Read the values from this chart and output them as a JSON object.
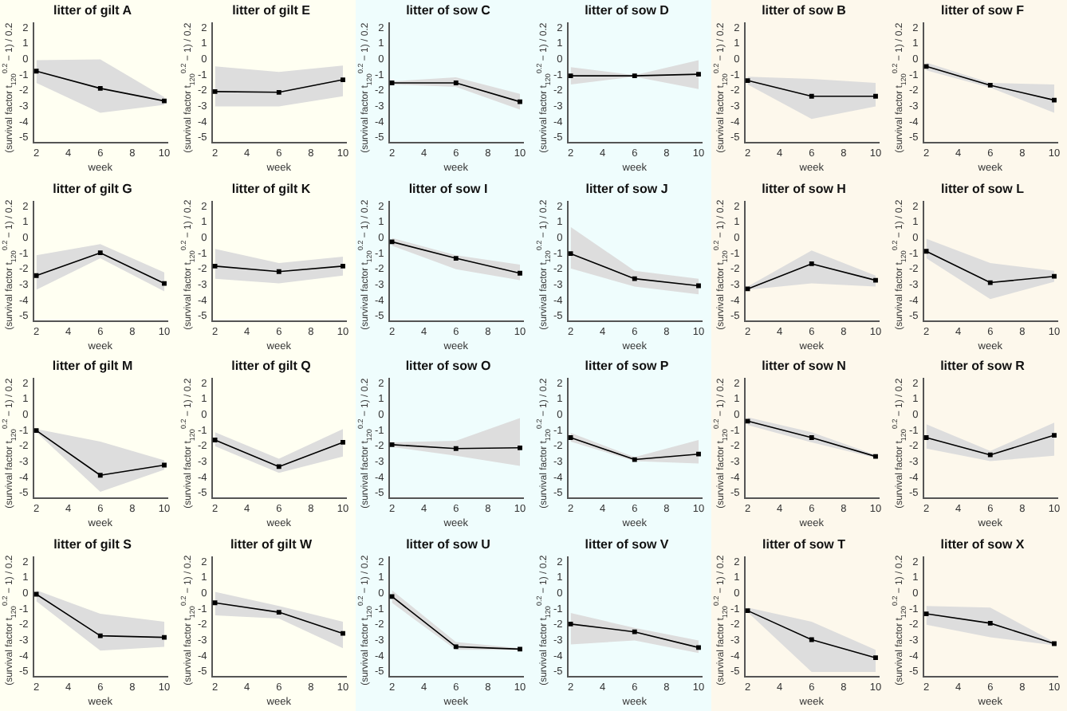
{
  "chart_data": [
    {
      "type": "line",
      "title": "litter of gilt A",
      "xlabel": "week",
      "ylabel": "(survival factor t$_{120}$$^{0.2}$ − 1) / 0.2",
      "x": [
        2,
        6,
        10
      ],
      "xlim": [
        1.8,
        10.2
      ],
      "xticks": [
        2,
        4,
        6,
        8,
        10
      ],
      "ylim": [
        -5.3,
        2.3
      ],
      "yticks": [
        -5,
        -4,
        -3,
        -2,
        -1,
        0,
        1,
        2
      ],
      "marker": "square",
      "series": [
        {
          "color": "#000000",
          "values": [
            -0.75,
            -1.85,
            -2.65
          ],
          "lower": [
            -1.5,
            -3.4,
            -2.9
          ],
          "upper": [
            -0.05,
            0,
            -2.4
          ]
        }
      ]
    },
    {
      "type": "line",
      "title": "litter of gilt E",
      "xlabel": "week",
      "ylabel": "(survival factor t$_{120}$$^{0.2}$ − 1) / 0.2",
      "x": [
        2,
        6,
        10
      ],
      "xlim": [
        1.8,
        10.2
      ],
      "xticks": [
        2,
        4,
        6,
        8,
        10
      ],
      "ylim": [
        -5.3,
        2.3
      ],
      "yticks": [
        -5,
        -4,
        -3,
        -2,
        -1,
        0,
        1,
        2
      ],
      "marker": "square",
      "series": [
        {
          "color": "#000000",
          "values": [
            -2.05,
            -2.1,
            -1.3
          ],
          "lower": [
            -3,
            -3,
            -2.35
          ],
          "upper": [
            -0.45,
            -0.8,
            -0.4
          ]
        }
      ]
    },
    {
      "type": "line",
      "title": "litter of sow C",
      "xlabel": "week",
      "ylabel": "(survival factor t$_{120}$$^{0.2}$ − 1) / 0.2",
      "x": [
        2,
        6,
        10
      ],
      "xlim": [
        1.8,
        10.2
      ],
      "xticks": [
        2,
        4,
        6,
        8,
        10
      ],
      "ylim": [
        -5.3,
        2.3
      ],
      "yticks": [
        -5,
        -4,
        -3,
        -2,
        -1,
        0,
        1,
        2
      ],
      "marker": "square",
      "series": [
        {
          "color": "#000000",
          "values": [
            -1.5,
            -1.5,
            -2.7
          ],
          "lower": [
            -1.6,
            -1.75,
            -3.2
          ],
          "upper": [
            -1.4,
            -1.15,
            -2.2
          ]
        }
      ]
    },
    {
      "type": "line",
      "title": "litter of sow D",
      "xlabel": "week",
      "ylabel": "(survival factor t$_{120}$$^{0.2}$ − 1) / 0.2",
      "x": [
        2,
        6,
        10
      ],
      "xlim": [
        1.8,
        10.2
      ],
      "xticks": [
        2,
        4,
        6,
        8,
        10
      ],
      "ylim": [
        -5.3,
        2.3
      ],
      "yticks": [
        -5,
        -4,
        -3,
        -2,
        -1,
        0,
        1,
        2
      ],
      "marker": "square",
      "series": [
        {
          "color": "#000000",
          "values": [
            -1.05,
            -1.05,
            -0.95
          ],
          "lower": [
            -1.6,
            -1.1,
            -1.9
          ],
          "upper": [
            -0.5,
            -1.0,
            -0.05
          ]
        }
      ]
    },
    {
      "type": "line",
      "title": "litter of sow B",
      "xlabel": "week",
      "ylabel": "(survival factor t$_{120}$$^{0.2}$ − 1) / 0.2",
      "x": [
        2,
        6,
        10
      ],
      "xlim": [
        1.8,
        10.2
      ],
      "xticks": [
        2,
        4,
        6,
        8,
        10
      ],
      "ylim": [
        -5.3,
        2.3
      ],
      "yticks": [
        -5,
        -4,
        -3,
        -2,
        -1,
        0,
        1,
        2
      ],
      "marker": "square",
      "series": [
        {
          "color": "#000000",
          "values": [
            -1.35,
            -2.35,
            -2.35
          ],
          "lower": [
            -1.6,
            -3.8,
            -3.0
          ],
          "upper": [
            -1.1,
            -1.25,
            -1.5
          ]
        }
      ]
    },
    {
      "type": "line",
      "title": "litter of sow F",
      "xlabel": "week",
      "ylabel": "(survival factor t$_{120}$$^{0.2}$ − 1) / 0.2",
      "x": [
        2,
        6,
        10
      ],
      "xlim": [
        1.8,
        10.2
      ],
      "xticks": [
        2,
        4,
        6,
        8,
        10
      ],
      "ylim": [
        -5.3,
        2.3
      ],
      "yticks": [
        -5,
        -4,
        -3,
        -2,
        -1,
        0,
        1,
        2
      ],
      "marker": "square",
      "series": [
        {
          "color": "#000000",
          "values": [
            -0.45,
            -1.65,
            -2.6
          ],
          "lower": [
            -0.7,
            -1.8,
            -3.4
          ],
          "upper": [
            -0.2,
            -1.5,
            -1.6
          ]
        }
      ]
    },
    {
      "type": "line",
      "title": "litter of gilt G",
      "xlabel": "week",
      "ylabel": "(survival factor t$_{120}$$^{0.2}$ − 1) / 0.2",
      "x": [
        2,
        6,
        10
      ],
      "xlim": [
        1.8,
        10.2
      ],
      "xticks": [
        2,
        4,
        6,
        8,
        10
      ],
      "ylim": [
        -5.3,
        2.3
      ],
      "yticks": [
        -5,
        -4,
        -3,
        -2,
        -1,
        0,
        1,
        2
      ],
      "marker": "square",
      "series": [
        {
          "color": "#000000",
          "values": [
            -2.4,
            -0.95,
            -2.9
          ],
          "lower": [
            -3.3,
            -1.3,
            -3.4
          ],
          "upper": [
            -1.1,
            -0.4,
            -2.2
          ]
        }
      ]
    },
    {
      "type": "line",
      "title": "litter of gilt K",
      "xlabel": "week",
      "ylabel": "(survival factor t$_{120}$$^{0.2}$ − 1) / 0.2",
      "x": [
        2,
        6,
        10
      ],
      "xlim": [
        1.8,
        10.2
      ],
      "xticks": [
        2,
        4,
        6,
        8,
        10
      ],
      "ylim": [
        -5.3,
        2.3
      ],
      "yticks": [
        -5,
        -4,
        -3,
        -2,
        -1,
        0,
        1,
        2
      ],
      "marker": "square",
      "series": [
        {
          "color": "#000000",
          "values": [
            -1.8,
            -2.15,
            -1.8
          ],
          "lower": [
            -2.6,
            -2.9,
            -2.4
          ],
          "upper": [
            -0.7,
            -1.6,
            -1.2
          ]
        }
      ]
    },
    {
      "type": "line",
      "title": "litter of sow I",
      "xlabel": "week",
      "ylabel": "(survival factor t$_{120}$$^{0.2}$ − 1) / 0.2",
      "x": [
        2,
        6,
        10
      ],
      "xlim": [
        1.8,
        10.2
      ],
      "xticks": [
        2,
        4,
        6,
        8,
        10
      ],
      "ylim": [
        -5.3,
        2.3
      ],
      "yticks": [
        -5,
        -4,
        -3,
        -2,
        -1,
        0,
        1,
        2
      ],
      "marker": "square",
      "series": [
        {
          "color": "#000000",
          "values": [
            -0.25,
            -1.3,
            -2.25
          ],
          "lower": [
            -0.5,
            -2.0,
            -2.7
          ],
          "upper": [
            0,
            -1.1,
            -1.7
          ]
        }
      ]
    },
    {
      "type": "line",
      "title": "litter of sow J",
      "xlabel": "week",
      "ylabel": "(survival factor t$_{120}$$^{0.2}$ − 1) / 0.2",
      "x": [
        2,
        6,
        10
      ],
      "xlim": [
        1.8,
        10.2
      ],
      "xticks": [
        2,
        4,
        6,
        8,
        10
      ],
      "ylim": [
        -5.3,
        2.3
      ],
      "yticks": [
        -5,
        -4,
        -3,
        -2,
        -1,
        0,
        1,
        2
      ],
      "marker": "square",
      "series": [
        {
          "color": "#000000",
          "values": [
            -1.0,
            -2.6,
            -3.05
          ],
          "lower": [
            -1.95,
            -3.1,
            -3.6
          ],
          "upper": [
            0.7,
            -2.1,
            -2.6
          ]
        }
      ]
    },
    {
      "type": "line",
      "title": "litter of sow H",
      "xlabel": "week",
      "ylabel": "(survival factor t$_{120}$$^{0.2}$ − 1) / 0.2",
      "x": [
        2,
        6,
        10
      ],
      "xlim": [
        1.8,
        10.2
      ],
      "xticks": [
        2,
        4,
        6,
        8,
        10
      ],
      "ylim": [
        -5.3,
        2.3
      ],
      "yticks": [
        -5,
        -4,
        -3,
        -2,
        -1,
        0,
        1,
        2
      ],
      "marker": "square",
      "series": [
        {
          "color": "#000000",
          "values": [
            -3.25,
            -1.65,
            -2.7
          ],
          "lower": [
            -3.3,
            -2.9,
            -3.1
          ],
          "upper": [
            -3.1,
            -0.8,
            -2.4
          ]
        }
      ]
    },
    {
      "type": "line",
      "title": "litter of sow L",
      "xlabel": "week",
      "ylabel": "(survival factor t$_{120}$$^{0.2}$ − 1) / 0.2",
      "x": [
        2,
        6,
        10
      ],
      "xlim": [
        1.8,
        10.2
      ],
      "xticks": [
        2,
        4,
        6,
        8,
        10
      ],
      "ylim": [
        -5.3,
        2.3
      ],
      "yticks": [
        -5,
        -4,
        -3,
        -2,
        -1,
        0,
        1,
        2
      ],
      "marker": "square",
      "series": [
        {
          "color": "#000000",
          "values": [
            -0.85,
            -2.85,
            -2.45
          ],
          "lower": [
            -1.3,
            -3.9,
            -2.8
          ],
          "upper": [
            -0.05,
            -1.6,
            -2.1
          ]
        }
      ]
    },
    {
      "type": "line",
      "title": "litter of gilt M",
      "xlabel": "week",
      "ylabel": "(survival factor t$_{120}$$^{0.2}$ − 1) / 0.2",
      "x": [
        2,
        6,
        10
      ],
      "xlim": [
        1.8,
        10.2
      ],
      "xticks": [
        2,
        4,
        6,
        8,
        10
      ],
      "ylim": [
        -5.3,
        2.3
      ],
      "yticks": [
        -5,
        -4,
        -3,
        -2,
        -1,
        0,
        1,
        2
      ],
      "marker": "square",
      "series": [
        {
          "color": "#000000",
          "values": [
            -1.0,
            -3.85,
            -3.2
          ],
          "lower": [
            -1.1,
            -4.9,
            -3.5
          ],
          "upper": [
            -0.9,
            -1.7,
            -2.9
          ]
        }
      ]
    },
    {
      "type": "line",
      "title": "litter of gilt Q",
      "xlabel": "week",
      "ylabel": "(survival factor t$_{120}$$^{0.2}$ − 1) / 0.2",
      "x": [
        2,
        6,
        10
      ],
      "xlim": [
        1.8,
        10.2
      ],
      "xticks": [
        2,
        4,
        6,
        8,
        10
      ],
      "ylim": [
        -5.3,
        2.3
      ],
      "yticks": [
        -5,
        -4,
        -3,
        -2,
        -1,
        0,
        1,
        2
      ],
      "marker": "square",
      "series": [
        {
          "color": "#000000",
          "values": [
            -1.6,
            -3.3,
            -1.75
          ],
          "lower": [
            -2.0,
            -3.7,
            -2.65
          ],
          "upper": [
            -1.1,
            -2.8,
            -0.9
          ]
        }
      ]
    },
    {
      "type": "line",
      "title": "litter of sow O",
      "xlabel": "week",
      "ylabel": "(survival factor t$_{120}$$^{0.2}$ − 1) / 0.2",
      "x": [
        2,
        6,
        10
      ],
      "xlim": [
        1.8,
        10.2
      ],
      "xticks": [
        2,
        4,
        6,
        8,
        10
      ],
      "ylim": [
        -5.3,
        2.3
      ],
      "yticks": [
        -5,
        -4,
        -3,
        -2,
        -1,
        0,
        1,
        2
      ],
      "marker": "square",
      "series": [
        {
          "color": "#000000",
          "values": [
            -1.9,
            -2.15,
            -2.1
          ],
          "lower": [
            -2.05,
            -2.6,
            -3.25
          ],
          "upper": [
            -1.75,
            -1.65,
            -0.2
          ]
        }
      ]
    },
    {
      "type": "line",
      "title": "litter of sow P",
      "xlabel": "week",
      "ylabel": "(survival factor t$_{120}$$^{0.2}$ − 1) / 0.2",
      "x": [
        2,
        6,
        10
      ],
      "xlim": [
        1.8,
        10.2
      ],
      "xticks": [
        2,
        4,
        6,
        8,
        10
      ],
      "ylim": [
        -5.3,
        2.3
      ],
      "yticks": [
        -5,
        -4,
        -3,
        -2,
        -1,
        0,
        1,
        2
      ],
      "marker": "square",
      "series": [
        {
          "color": "#000000",
          "values": [
            -1.45,
            -2.85,
            -2.5
          ],
          "lower": [
            -1.7,
            -2.95,
            -3.1
          ],
          "upper": [
            -1.15,
            -2.7,
            -1.6
          ]
        }
      ]
    },
    {
      "type": "line",
      "title": "litter of sow N",
      "xlabel": "week",
      "ylabel": "(survival factor t$_{120}$$^{0.2}$ − 1) / 0.2",
      "x": [
        2,
        6,
        10
      ],
      "xlim": [
        1.8,
        10.2
      ],
      "xticks": [
        2,
        4,
        6,
        8,
        10
      ],
      "ylim": [
        -5.3,
        2.3
      ],
      "yticks": [
        -5,
        -4,
        -3,
        -2,
        -1,
        0,
        1,
        2
      ],
      "marker": "square",
      "series": [
        {
          "color": "#000000",
          "values": [
            -0.4,
            -1.45,
            -2.65
          ],
          "lower": [
            -0.65,
            -1.75,
            -2.75
          ],
          "upper": [
            -0.15,
            -1.1,
            -2.55
          ]
        }
      ]
    },
    {
      "type": "line",
      "title": "litter of sow R",
      "xlabel": "week",
      "ylabel": "(survival factor t$_{120}$$^{0.2}$ − 1) / 0.2",
      "x": [
        2,
        6,
        10
      ],
      "xlim": [
        1.8,
        10.2
      ],
      "xticks": [
        2,
        4,
        6,
        8,
        10
      ],
      "ylim": [
        -5.3,
        2.3
      ],
      "yticks": [
        -5,
        -4,
        -3,
        -2,
        -1,
        0,
        1,
        2
      ],
      "marker": "square",
      "series": [
        {
          "color": "#000000",
          "values": [
            -1.45,
            -2.55,
            -1.3
          ],
          "lower": [
            -2.15,
            -2.95,
            -2.6
          ],
          "upper": [
            -0.6,
            -2.3,
            -0.5
          ]
        }
      ]
    },
    {
      "type": "line",
      "title": "litter of gilt S",
      "xlabel": "week",
      "ylabel": "(survival factor t$_{120}$$^{0.2}$ − 1) / 0.2",
      "x": [
        2,
        6,
        10
      ],
      "xlim": [
        1.8,
        10.2
      ],
      "xticks": [
        2,
        4,
        6,
        8,
        10
      ],
      "ylim": [
        -5.3,
        2.3
      ],
      "yticks": [
        -5,
        -4,
        -3,
        -2,
        -1,
        0,
        1,
        2
      ],
      "marker": "square",
      "series": [
        {
          "color": "#000000",
          "values": [
            -0.05,
            -2.7,
            -2.8
          ],
          "lower": [
            -0.5,
            -3.65,
            -3.4
          ],
          "upper": [
            0.2,
            -1.3,
            -1.8
          ]
        }
      ]
    },
    {
      "type": "line",
      "title": "litter of gilt W",
      "xlabel": "week",
      "ylabel": "(survival factor t$_{120}$$^{0.2}$ − 1) / 0.2",
      "x": [
        2,
        6,
        10
      ],
      "xlim": [
        1.8,
        10.2
      ],
      "xticks": [
        2,
        4,
        6,
        8,
        10
      ],
      "ylim": [
        -5.3,
        2.3
      ],
      "yticks": [
        -5,
        -4,
        -3,
        -2,
        -1,
        0,
        1,
        2
      ],
      "marker": "square",
      "series": [
        {
          "color": "#000000",
          "values": [
            -0.6,
            -1.2,
            -2.55
          ],
          "lower": [
            -1.4,
            -1.6,
            -3.5
          ],
          "upper": [
            0.1,
            -0.8,
            -1.8
          ]
        }
      ]
    },
    {
      "type": "line",
      "title": "litter of sow U",
      "xlabel": "week",
      "ylabel": "(survival factor t$_{120}$$^{0.2}$ − 1) / 0.2",
      "x": [
        2,
        6,
        10
      ],
      "xlim": [
        1.8,
        10.2
      ],
      "xticks": [
        2,
        4,
        6,
        8,
        10
      ],
      "ylim": [
        -5.3,
        2.3
      ],
      "yticks": [
        -5,
        -4,
        -3,
        -2,
        -1,
        0,
        1,
        2
      ],
      "marker": "square",
      "series": [
        {
          "color": "#000000",
          "values": [
            -0.2,
            -3.4,
            -3.55
          ],
          "lower": [
            -0.6,
            -3.6,
            -3.6
          ],
          "upper": [
            0.2,
            -3.1,
            -3.5
          ]
        }
      ]
    },
    {
      "type": "line",
      "title": "litter of sow V",
      "xlabel": "week",
      "ylabel": "(survival factor t$_{120}$$^{0.2}$ − 1) / 0.2",
      "x": [
        2,
        6,
        10
      ],
      "xlim": [
        1.8,
        10.2
      ],
      "xticks": [
        2,
        4,
        6,
        8,
        10
      ],
      "ylim": [
        -5.3,
        2.3
      ],
      "yticks": [
        -5,
        -4,
        -3,
        -2,
        -1,
        0,
        1,
        2
      ],
      "marker": "square",
      "series": [
        {
          "color": "#000000",
          "values": [
            -1.95,
            -2.45,
            -3.45
          ],
          "lower": [
            -3.25,
            -3.0,
            -3.8
          ],
          "upper": [
            -1.25,
            -2.2,
            -3.0
          ]
        }
      ]
    },
    {
      "type": "line",
      "title": "litter of sow T",
      "xlabel": "week",
      "ylabel": "(survival factor t$_{120}$$^{0.2}$ − 1) / 0.2",
      "x": [
        2,
        6,
        10
      ],
      "xlim": [
        1.8,
        10.2
      ],
      "xticks": [
        2,
        4,
        6,
        8,
        10
      ],
      "ylim": [
        -5.3,
        2.3
      ],
      "yticks": [
        -5,
        -4,
        -3,
        -2,
        -1,
        0,
        1,
        2
      ],
      "marker": "square",
      "series": [
        {
          "color": "#000000",
          "values": [
            -1.1,
            -2.95,
            -4.1
          ],
          "lower": [
            -1.2,
            -5.0,
            -5.0
          ],
          "upper": [
            -0.9,
            -1.8,
            -3.6
          ]
        }
      ]
    },
    {
      "type": "line",
      "title": "litter of sow X",
      "xlabel": "week",
      "ylabel": "(survival factor t$_{120}$$^{0.2}$ − 1) / 0.2",
      "x": [
        2,
        6,
        10
      ],
      "xlim": [
        1.8,
        10.2
      ],
      "xticks": [
        2,
        4,
        6,
        8,
        10
      ],
      "ylim": [
        -5.3,
        2.3
      ],
      "yticks": [
        -5,
        -4,
        -3,
        -2,
        -1,
        0,
        1,
        2
      ],
      "marker": "square",
      "series": [
        {
          "color": "#000000",
          "values": [
            -1.3,
            -1.9,
            -3.2
          ],
          "lower": [
            -2.0,
            -2.8,
            -3.3
          ],
          "upper": [
            -0.8,
            -0.9,
            -3.1
          ]
        }
      ]
    }
  ]
}
